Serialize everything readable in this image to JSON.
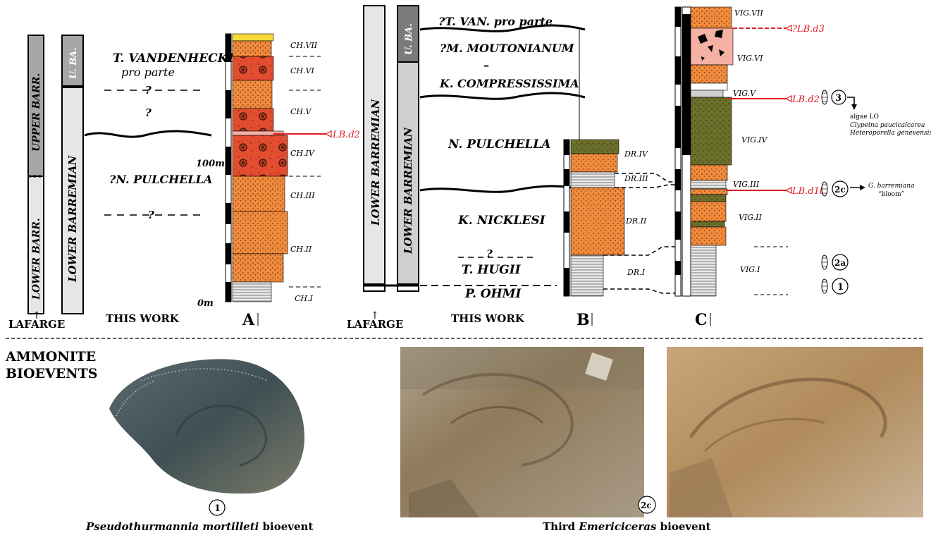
{
  "colors": {
    "sand": "#f08a3c",
    "red_bed": "#e24d2f",
    "olive": "#6b6f2a",
    "pink": "#f4b1a4",
    "yellow": "#f6da3a",
    "grey": "#cfcfcf",
    "dark_grey": "#7b7b7b",
    "bioevent_red": "#e31b23"
  },
  "panel_a": {
    "lafarge_upper": "UPPER BARR.",
    "lafarge_lower": "LOWER BARR.",
    "this_upper": "U. BA.",
    "this_lower": "LOWER BARREMIAN",
    "zone_vandenheckii_1": "T. VANDENHECKII",
    "zone_vandenheckii_2": "pro parte",
    "q1": "?",
    "q2": "?",
    "q3": "?",
    "zone_pulchella": "?N. PULCHELLA",
    "scale_100": "100m",
    "scale_0": "0m",
    "units": [
      "CH.VII",
      "CH.VI",
      "CH.V",
      "CH.IV",
      "CH.III",
      "CH.II",
      "CH.I"
    ],
    "event": "LB.d2",
    "label_lafarge": "LAFARGE",
    "label_thiswork": "THIS WORK",
    "letter": "A"
  },
  "panel_b": {
    "this_upper": "U. BA.",
    "this_lower": "LOWER BARREMIAN",
    "lafarge_lower": "LOWER BARREMIAN",
    "zone_van": "?T. VAN. pro parte",
    "zone_mout": "?M. MOUTONIANUM",
    "dash": "–",
    "zone_comp": "K. COMPRESSISSIMA",
    "zone_pulchella": "N. PULCHELLA",
    "zone_nicklesi": "K. NICKLESI",
    "q": "?",
    "zone_hugii": "T. HUGII",
    "zone_ohmi": "P. OHMI",
    "units": [
      "DR.IV",
      "DR.III",
      "DR.II",
      "DR.I"
    ],
    "label_lafarge": "LAFARGE",
    "label_thiswork": "THIS WORK",
    "letter": "B"
  },
  "panel_c": {
    "units": [
      "VIG.VII",
      "VIG.VI",
      "VIG.V",
      "VIG.IV",
      "VIG.III",
      "VIG.II",
      "VIG.I"
    ],
    "event_d3": "?LB.d3",
    "event_d2": "LB.d2",
    "event_d1b": "LB.d1b",
    "bio_3": "3",
    "bio_2c": "2c",
    "bio_2a": "2a",
    "bio_1": "1",
    "note_algae_1": "algae LO",
    "note_algae_2": "Clypeina paucicalcarea",
    "note_algae_3": "Heteroporella genevensis",
    "note_g_1": "G. barremiana",
    "note_g_2": "“bloom”",
    "letter": "C"
  },
  "bottom": {
    "title_1": "AMMONITE",
    "title_2": "BIOEVENTS",
    "badge_1": "1",
    "badge_2c": "2c",
    "caption_1_genus": "Pseudothurmannia mortilleti",
    "caption_1_rest": " bioevent",
    "caption_2_pre": "Third ",
    "caption_2_genus": "Emericiceras",
    "caption_2_rest": " bioevent"
  }
}
